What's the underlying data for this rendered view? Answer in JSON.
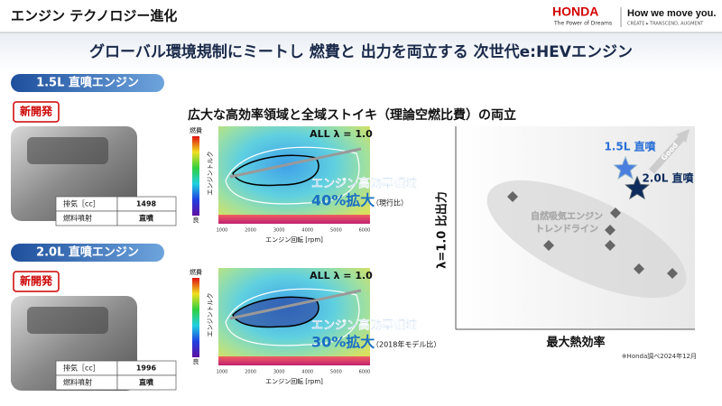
{
  "header": {
    "title": "エンジン テクノロジー進化",
    "brand": "HONDA",
    "brand_tagline": "The Power of Dreams",
    "slogan": "How we move you.",
    "slogan_sub": "CREATE ▸ TRANSCEND, AUGMENT"
  },
  "headline": "グローバル環境規制にミートし 燃費と 出力を両立する 次世代e:HEVエンジン",
  "subheadline": "広大な高効率領域と全域ストイキ（理論空燃比費）の両立",
  "engines": [
    {
      "name": "1.5L 直噴エンジン",
      "badge": "新開発",
      "spec_table": [
        [
          "排気［cc］",
          1498
        ],
        [
          "燃料噴射",
          "直噴"
        ]
      ],
      "map": {
        "scale_top": "燃費",
        "scale_bottom": "良",
        "y_label": "エンジントルク",
        "x_label": "エンジン回転 [rpm]",
        "x_ticks": [
          1000,
          2000,
          3000,
          4000,
          5000,
          6000
        ],
        "note": "ALL λ = 1.0",
        "callout": "エンジン高効率領域",
        "callout_value": "40%拡大",
        "callout_note": "（現行比）"
      }
    },
    {
      "name": "2.0L 直噴エンジン",
      "badge": "新開発",
      "spec_table": [
        [
          "排気［cc］",
          1996
        ],
        [
          "燃料噴射",
          "直噴"
        ]
      ],
      "map": {
        "scale_top": "燃費",
        "scale_bottom": "良",
        "y_label": "エンジントルク",
        "x_label": "エンジン回転 [rpm]",
        "x_ticks": [
          1000,
          2000,
          3000,
          4000,
          5000,
          6000
        ],
        "note": "ALL λ = 1.0",
        "callout": "エンジン高効率領域",
        "callout_value": "30%拡大",
        "callout_note": "（2018年モデル比）"
      }
    }
  ],
  "positioning": {
    "y_label": "λ=1.0 比出力",
    "x_label": "最大熱効率",
    "trend_label": [
      "自然吸気エンジン",
      "トレンドライン"
    ],
    "good": "Good",
    "highlights": [
      "1.5L 直噴",
      "2.0L 直噴"
    ]
  },
  "footnote": "※Honda調べ2024年12月"
}
